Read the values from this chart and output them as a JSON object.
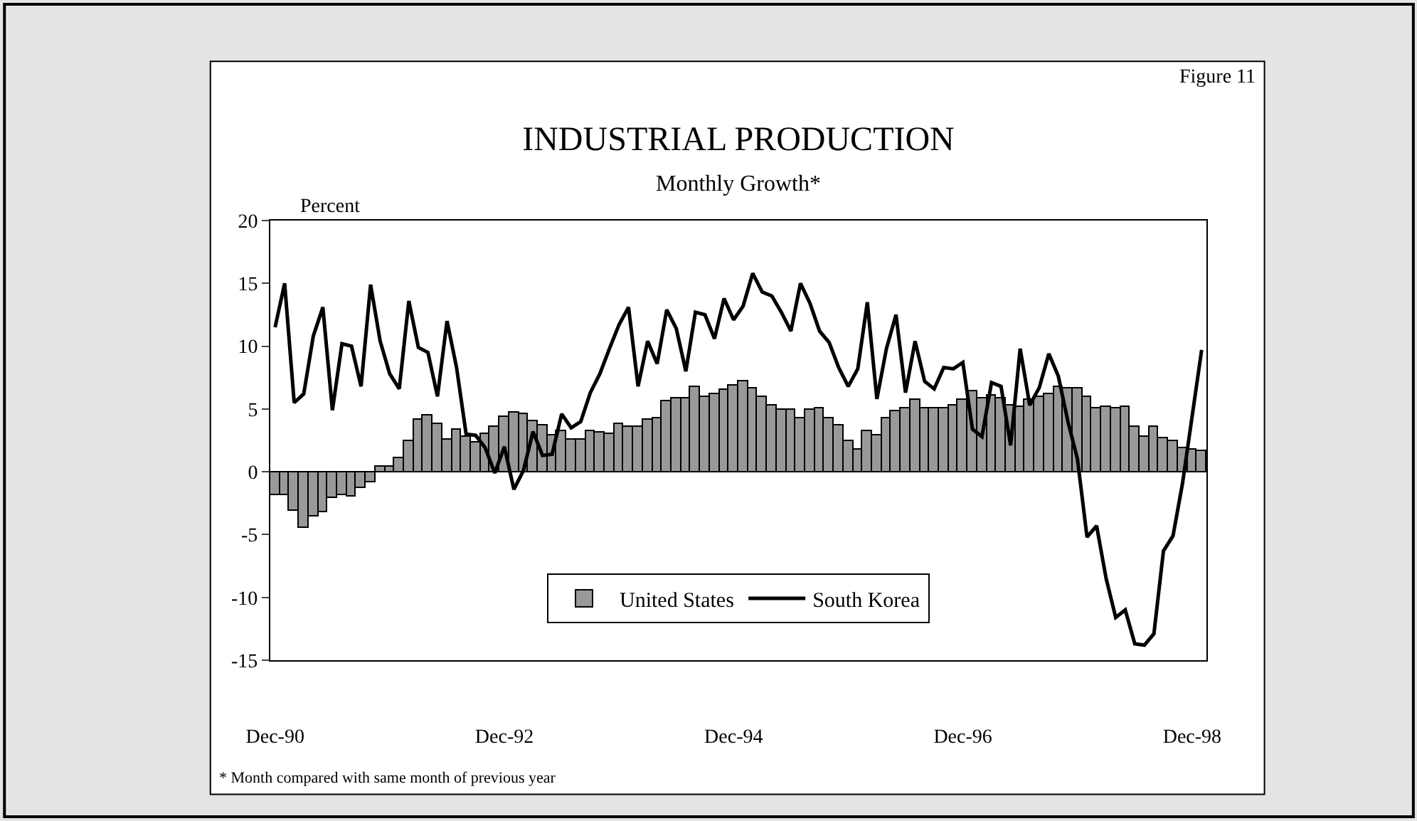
{
  "chart_data": {
    "type": "bar",
    "title": "INDUSTRIAL PRODUCTION",
    "subtitle": "Monthly Growth*",
    "ylabel": "Percent",
    "annotations": [
      "Figure 11",
      "* Month compared with same month of previous year"
    ],
    "categories": [
      "Dec-90",
      null,
      null,
      null,
      null,
      null,
      null,
      null,
      null,
      null,
      null,
      null,
      null,
      null,
      null,
      null,
      null,
      null,
      null,
      null,
      null,
      null,
      null,
      null,
      "Dec-92",
      null,
      null,
      null,
      null,
      null,
      null,
      null,
      null,
      null,
      null,
      null,
      null,
      null,
      null,
      null,
      null,
      null,
      null,
      null,
      null,
      null,
      null,
      null,
      "Dec-94",
      null,
      null,
      null,
      null,
      null,
      null,
      null,
      null,
      null,
      null,
      null,
      null,
      null,
      null,
      null,
      null,
      null,
      null,
      null,
      null,
      null,
      null,
      null,
      "Dec-96",
      null,
      null,
      null,
      null,
      null,
      null,
      null,
      null,
      null,
      null,
      null,
      null,
      null,
      null,
      null,
      null,
      null,
      null,
      null,
      null,
      null,
      null,
      null,
      "Dec-98",
      null
    ],
    "series": [
      {
        "name": "United States",
        "color": "#999999",
        "values": [
          -1.9,
          -1.9,
          -3.1,
          -4.5,
          -3.6,
          -3.2,
          -2.1,
          -1.9,
          -2.0,
          -1.3,
          -0.8,
          0.4,
          0.4,
          1.1,
          2.4,
          4.1,
          4.5,
          3.8,
          2.6,
          3.3,
          2.8,
          2.3,
          3.0,
          3.6,
          4.4,
          4.7,
          4.6,
          4.0,
          3.7,
          2.9,
          3.2,
          2.6,
          2.6,
          3.2,
          3.1,
          3.0,
          3.8,
          3.6,
          3.6,
          4.1,
          4.3,
          5.6,
          5.8,
          5.8,
          6.8,
          5.9,
          6.2,
          6.5,
          6.9,
          7.2,
          6.6,
          6.0,
          5.3,
          4.9,
          4.9,
          4.3,
          4.9,
          5.0,
          4.3,
          3.7,
          2.5,
          1.8,
          3.2,
          2.9,
          4.3,
          4.8,
          5.1,
          5.7,
          5.1,
          5.0,
          5.0,
          5.3,
          5.7,
          6.4,
          5.8,
          6.1,
          5.8,
          5.3,
          5.2,
          5.7,
          5.9,
          6.2,
          6.8,
          6.6,
          6.6,
          6.0,
          5.1,
          5.2,
          5.1,
          5.2,
          3.6,
          2.8,
          3.6,
          2.7,
          2.4,
          1.9,
          1.8,
          1.7
        ]
      },
      {
        "name": "South Korea",
        "type": "line",
        "color": "#000000",
        "values": [
          11.5,
          15.0,
          5.5,
          6.2,
          10.8,
          13.1,
          4.9,
          10.2,
          10.0,
          6.8,
          14.9,
          10.4,
          7.8,
          6.6,
          13.6,
          9.9,
          9.5,
          6.0,
          12.0,
          8.3,
          3.0,
          2.9,
          1.9,
          -0.1,
          2.0,
          -1.4,
          0.1,
          3.2,
          1.3,
          1.4,
          4.6,
          3.5,
          4.0,
          6.3,
          7.8,
          9.8,
          11.7,
          13.1,
          6.8,
          10.4,
          8.6,
          12.9,
          11.4,
          8.0,
          12.7,
          12.5,
          10.6,
          13.8,
          12.1,
          13.2,
          15.8,
          14.3,
          14.0,
          12.7,
          11.2,
          15.0,
          13.4,
          11.2,
          10.3,
          8.3,
          6.8,
          8.2,
          13.5,
          5.8,
          9.8,
          12.5,
          6.3,
          10.4,
          7.2,
          6.6,
          8.3,
          8.2,
          8.7,
          3.4,
          2.8,
          7.1,
          6.8,
          2.1,
          9.8,
          5.3,
          6.7,
          9.4,
          7.6,
          4.0,
          1.0,
          -5.2,
          -4.3,
          -8.5,
          -11.6,
          -11.0,
          -13.7,
          -13.8,
          -12.9,
          -6.3,
          -5.1,
          -0.9,
          4.4,
          9.7
        ]
      }
    ],
    "ylim": [
      -15,
      20
    ],
    "yticks": [
      -15,
      -10,
      -5,
      0,
      5,
      10,
      15,
      20
    ],
    "legend": "bottom",
    "line_style": "solid",
    "marker": "none"
  }
}
